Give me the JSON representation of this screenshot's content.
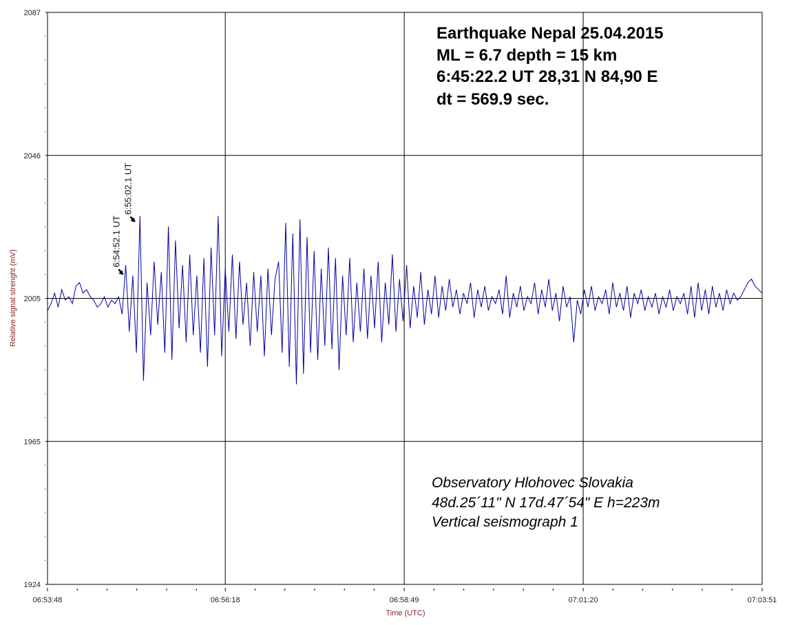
{
  "chart_data": {
    "type": "line",
    "title": "",
    "xlabel": "Time (UTC)",
    "ylabel": "Relative signal strenght (mV)",
    "ylim": [
      1924,
      2087
    ],
    "yticks": [
      "2087",
      "2046",
      "2005",
      "1965",
      "1924"
    ],
    "xticks": [
      "06:53:48",
      "06:56:18",
      "06:58:49",
      "07:01:20",
      "07:03:51"
    ],
    "x_range": [
      "06:53:48",
      "07:03:51"
    ],
    "grid": true,
    "series_color": "#0000a0",
    "label_color": "#8b1a1a",
    "series": [
      {
        "time_start": "06:53:48",
        "time_step_s": 3,
        "values": [
          2002,
          2004,
          2007,
          2003,
          2008,
          2005,
          2006,
          2004,
          2009,
          2010,
          2007,
          2008,
          2006,
          2005,
          2003,
          2004,
          2006,
          2003,
          2005,
          2004,
          2006,
          2001,
          2015,
          1996,
          2012,
          1990,
          2029,
          1982,
          2010,
          1995,
          2016,
          1998,
          2013,
          1990,
          2026,
          1988,
          2022,
          1997,
          2015,
          1993,
          2018,
          1995,
          2012,
          1990,
          2017,
          1986,
          2020,
          1995,
          2029,
          1989,
          2014,
          1996,
          2018,
          1994,
          2016,
          1998,
          2010,
          1992,
          2013,
          1996,
          2012,
          1989,
          2014,
          1995,
          2011,
          2016,
          1990,
          2027,
          1986,
          2024,
          1981,
          2028,
          1984,
          2023,
          1990,
          2019,
          1988,
          2014,
          1992,
          2020,
          1991,
          2017,
          1985,
          2012,
          1995,
          2017,
          1993,
          2010,
          1996,
          2014,
          1994,
          2012,
          1997,
          2016,
          1993,
          2010,
          1998,
          2018,
          1996,
          2011,
          1999,
          2015,
          1997,
          2009,
          2000,
          2013,
          1998,
          2008,
          2001,
          2012,
          2000,
          2009,
          2002,
          2011,
          2003,
          2008,
          2001,
          2007,
          2004,
          2010,
          2000,
          2008,
          2003,
          2009,
          2002,
          2006,
          2004,
          2008,
          2001,
          2012,
          2000,
          2007,
          2003,
          2009,
          2002,
          2006,
          2004,
          2010,
          2001,
          2008,
          2003,
          2011,
          2002,
          2007,
          1999,
          2009,
          2003,
          2006,
          1993,
          2005,
          2001,
          2008,
          2003,
          2009,
          2002,
          2006,
          2004,
          2008,
          2001,
          2010,
          2003,
          2007,
          2002,
          2009,
          2000,
          2007,
          2004,
          2008,
          2002,
          2006,
          2003,
          2007,
          2001,
          2006,
          2003,
          2008,
          2002,
          2006,
          2004,
          2007,
          2001,
          2009,
          2000,
          2010,
          2002,
          2008,
          2001,
          2009,
          2003,
          2007,
          2002,
          2008,
          2004,
          2007,
          2005,
          2006,
          2008,
          2010,
          2011,
          2009,
          2008,
          2007
        ]
      }
    ],
    "annotations": [
      {
        "text": "6:54:52.1 UT",
        "time": "06:54:52.1",
        "value": 2012
      },
      {
        "text": "6:55:02.1 UT",
        "time": "06:55:02.1",
        "value": 2027
      }
    ]
  },
  "event_info": [
    "Earthquake Nepal  25.04.2015",
    "ML = 6.7    depth  = 15 km",
    "6:45:22.2 UT   28,31 N   84,90 E",
    "dt = 569.9 sec."
  ],
  "station_info": [
    "Observatory  Hlohovec   Slovakia",
    "48d.25´11\" N    17d.47´54\" E   h=223m",
    "Vertical seismograph 1"
  ]
}
